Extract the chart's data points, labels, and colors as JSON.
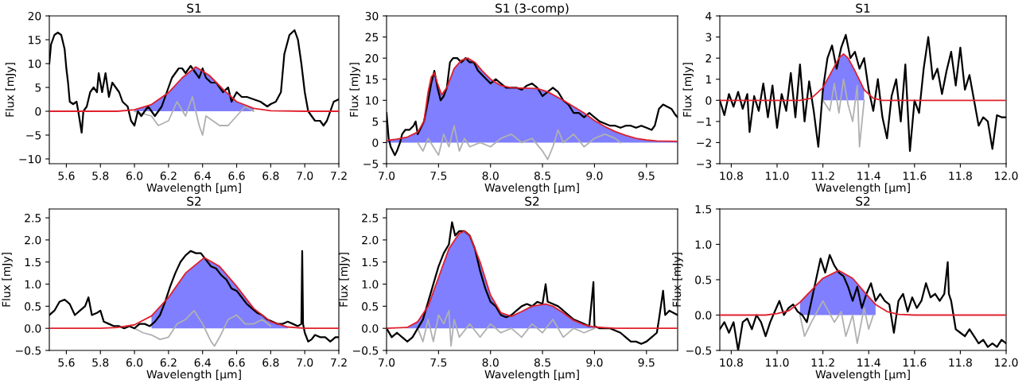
{
  "chart_data": [
    {
      "type": "line",
      "title": "S1",
      "xlabel": "Wavelength [μm]",
      "ylabel": "Flux [mJy]",
      "xlim": [
        5.5,
        7.2
      ],
      "ylim": [
        -11,
        20
      ],
      "xticks": [
        5.6,
        5.8,
        {
          "value": 6,
          "label": "6.0"
        },
        6.2,
        6.4,
        6.6,
        6.8,
        {
          "value": 7,
          "label": "7.0"
        },
        7.2
      ],
      "yticks": [
        -10,
        -5,
        0,
        5,
        10,
        15,
        20
      ],
      "series": [
        {
          "type": "area",
          "color": "#7f7fff",
          "x": [
            6.0,
            6.1,
            6.2,
            6.28,
            6.36,
            6.44,
            6.52,
            6.6,
            6.7
          ],
          "values": [
            0.3,
            1.4,
            3.9,
            7.0,
            9.3,
            7.5,
            4.6,
            2.0,
            0.6
          ]
        },
        {
          "type": "line",
          "color": "#b0b0b0",
          "x": [
            6.0,
            6.1,
            6.14,
            6.2,
            6.25,
            6.3,
            6.34,
            6.38,
            6.4,
            6.42,
            6.46,
            6.5,
            6.55,
            6.6,
            6.65,
            6.7
          ],
          "values": [
            0,
            -1,
            -3,
            -2,
            2,
            -1,
            3,
            -3,
            -5,
            -1,
            -2,
            -3,
            -3,
            -1,
            1,
            0
          ]
        },
        {
          "type": "line",
          "color": "#000000",
          "x": [
            5.5,
            5.51,
            5.53,
            5.55,
            5.57,
            5.59,
            5.6,
            5.61,
            5.62,
            5.64,
            5.66,
            5.67,
            5.69,
            5.7,
            5.72,
            5.74,
            5.76,
            5.78,
            5.79,
            5.81,
            5.83,
            5.85,
            5.87,
            5.89,
            5.91,
            5.93,
            5.96,
            5.98,
            6.0,
            6.02,
            6.04,
            6.06,
            6.08,
            6.1,
            6.12,
            6.14,
            6.16,
            6.18,
            6.2,
            6.22,
            6.24,
            6.26,
            6.28,
            6.3,
            6.33,
            6.36,
            6.38,
            6.4,
            6.42,
            6.45,
            6.48,
            6.5,
            6.52,
            6.55,
            6.57,
            6.6,
            6.63,
            6.66,
            6.7,
            6.74,
            6.78,
            6.8,
            6.83,
            6.86,
            6.88,
            6.91,
            6.94,
            6.96,
            6.98,
            7.0,
            7.02,
            7.04,
            7.06,
            7.09,
            7.11,
            7.13,
            7.15,
            7.17,
            7.2
          ],
          "values": [
            10,
            14,
            16,
            16.5,
            16,
            13,
            9,
            6,
            2,
            1.5,
            2,
            0,
            -4.5,
            0,
            1,
            4,
            5,
            4,
            8,
            4,
            8,
            3,
            6,
            5,
            4,
            2,
            1,
            -2,
            -3,
            0,
            -1,
            0,
            1,
            0,
            -1,
            0,
            1,
            3,
            5,
            7,
            8,
            9,
            9,
            8,
            9.5,
            8,
            7,
            9,
            7,
            6,
            6,
            5,
            4,
            5,
            2,
            4,
            3,
            3,
            2.5,
            2,
            1,
            1.5,
            2,
            4,
            12,
            16,
            17,
            15,
            10,
            4,
            0,
            -1,
            -2,
            -2,
            -3,
            -2,
            0,
            2,
            2.5
          ]
        },
        {
          "type": "line",
          "color": "#e0202c",
          "x": [
            5.5,
            5.9,
            6.0,
            6.1,
            6.2,
            6.28,
            6.36,
            6.44,
            6.52,
            6.6,
            6.7,
            6.8,
            7.0,
            7.2
          ],
          "values": [
            0,
            0,
            0.3,
            1.4,
            3.9,
            7.0,
            9.3,
            7.5,
            4.6,
            2.0,
            0.6,
            0.1,
            0,
            0
          ]
        }
      ]
    },
    {
      "type": "line",
      "title": "S1 (3-comp)",
      "xlabel": "Wavelength [μm]",
      "ylabel": "Flux [mJy]",
      "xlim": [
        7.0,
        9.8
      ],
      "ylim": [
        -5,
        30
      ],
      "xticks": [
        {
          "value": 7,
          "label": "7.0"
        },
        7.5,
        {
          "value": 8,
          "label": "8.0"
        },
        8.5,
        {
          "value": 9,
          "label": "9.0"
        },
        9.5
      ],
      "yticks": [
        -5,
        0,
        5,
        10,
        15,
        20,
        25,
        30
      ],
      "series": [
        {
          "type": "area",
          "color": "#7f7fff",
          "x": [
            7.0,
            7.1,
            7.2,
            7.3,
            7.36,
            7.4,
            7.43,
            7.46,
            7.49,
            7.53,
            7.58,
            7.65,
            7.72,
            7.78,
            7.85,
            7.92,
            8.0,
            8.1,
            8.2,
            8.3,
            8.45,
            8.55,
            8.7,
            8.8,
            8.9,
            9.0,
            9.1,
            9.2,
            9.3,
            9.4,
            9.5,
            9.6,
            9.8
          ],
          "values": [
            0.5,
            0.8,
            1.3,
            2.5,
            5,
            12,
            15.5,
            16.5,
            14,
            11.3,
            13,
            17.5,
            19.5,
            20,
            19,
            17,
            15,
            13.5,
            13,
            12.9,
            12.8,
            12,
            10,
            8.5,
            7,
            5.2,
            3.8,
            2.6,
            1.7,
            1.0,
            0.6,
            0.4,
            0.3
          ]
        },
        {
          "type": "line",
          "color": "#b0b0b0",
          "x": [
            7.3,
            7.35,
            7.4,
            7.45,
            7.5,
            7.55,
            7.6,
            7.65,
            7.7,
            7.75,
            7.8,
            7.9,
            8.0,
            8.1,
            8.2,
            8.3,
            8.4,
            8.5,
            8.55,
            8.6,
            8.65,
            8.7,
            8.8,
            8.9,
            9.0,
            9.1,
            9.2,
            9.25
          ],
          "values": [
            0,
            -2,
            1,
            -1,
            -3,
            2,
            -1,
            4,
            -2,
            1,
            -1,
            0,
            -1,
            1,
            2,
            0,
            1,
            -2,
            -4,
            -1,
            3,
            0,
            2,
            -1,
            1,
            2,
            1,
            0
          ]
        },
        {
          "type": "line",
          "color": "#000000",
          "x": [
            7.0,
            7.02,
            7.04,
            7.06,
            7.08,
            7.1,
            7.13,
            7.15,
            7.18,
            7.22,
            7.26,
            7.28,
            7.3,
            7.32,
            7.36,
            7.4,
            7.43,
            7.46,
            7.49,
            7.52,
            7.55,
            7.58,
            7.61,
            7.64,
            7.68,
            7.72,
            7.76,
            7.8,
            7.84,
            7.88,
            7.92,
            7.96,
            8.0,
            8.05,
            8.1,
            8.15,
            8.2,
            8.25,
            8.3,
            8.35,
            8.4,
            8.45,
            8.5,
            8.55,
            8.6,
            8.65,
            8.7,
            8.75,
            8.8,
            8.85,
            8.9,
            8.95,
            9.0,
            9.05,
            9.1,
            9.15,
            9.2,
            9.25,
            9.3,
            9.35,
            9.4,
            9.45,
            9.5,
            9.55,
            9.58,
            9.62,
            9.66,
            9.7,
            9.74,
            9.78,
            9.8
          ],
          "values": [
            7,
            1,
            -1,
            -2,
            -3,
            -2,
            0,
            2,
            3,
            3,
            4,
            5,
            2,
            3,
            5,
            10,
            14,
            17,
            13,
            10,
            11,
            13,
            19,
            20,
            20,
            19,
            20,
            19,
            19,
            17,
            16,
            15,
            14,
            15,
            14,
            13,
            13,
            13,
            12.5,
            13.5,
            14,
            13,
            11,
            12,
            13,
            12,
            10,
            9,
            7,
            7,
            6,
            7,
            6,
            5,
            4.5,
            4,
            4,
            3.5,
            4,
            4,
            3.5,
            4,
            3.5,
            3,
            4,
            8,
            9,
            8.5,
            8,
            6.5,
            6
          ]
        },
        {
          "type": "line",
          "color": "#e0202c",
          "x": [
            7.0,
            7.1,
            7.2,
            7.3,
            7.36,
            7.4,
            7.43,
            7.46,
            7.49,
            7.53,
            7.58,
            7.65,
            7.72,
            7.78,
            7.85,
            7.92,
            8.0,
            8.1,
            8.2,
            8.3,
            8.45,
            8.55,
            8.7,
            8.8,
            8.9,
            9.0,
            9.1,
            9.2,
            9.3,
            9.4,
            9.5,
            9.6,
            9.8
          ],
          "values": [
            0.5,
            0.8,
            1.3,
            2.5,
            5,
            12,
            15.5,
            16.5,
            14,
            11.3,
            13,
            17.5,
            19.5,
            20,
            19,
            17,
            15,
            13.5,
            13,
            12.9,
            12.8,
            12,
            10,
            8.5,
            7,
            5.2,
            3.8,
            2.6,
            1.7,
            1.0,
            0.6,
            0.4,
            0.3
          ]
        }
      ]
    },
    {
      "type": "line",
      "title": "S1",
      "xlabel": "Wavelength [μm]",
      "ylabel": "Flux [mJy]",
      "xlim": [
        10.75,
        12.0
      ],
      "ylim": [
        -3,
        4
      ],
      "xticks": [
        10.8,
        {
          "value": 11,
          "label": "11.0"
        },
        11.2,
        11.4,
        11.6,
        11.8,
        {
          "value": 12,
          "label": "12.0"
        }
      ],
      "yticks": [
        -3,
        -2,
        -1,
        0,
        1,
        2,
        3,
        4
      ],
      "series": [
        {
          "type": "area",
          "color": "#7f7fff",
          "x": [
            11.2,
            11.24,
            11.27,
            11.29,
            11.31,
            11.34,
            11.38
          ],
          "values": [
            0.6,
            1.4,
            2.0,
            2.2,
            2.0,
            1.4,
            0.5
          ]
        },
        {
          "type": "line",
          "color": "#b0b0b0",
          "x": [
            11.2,
            11.23,
            11.25,
            11.27,
            11.29,
            11.31,
            11.33,
            11.35,
            11.36,
            11.38
          ],
          "values": [
            0,
            -0.5,
            0.8,
            -0.6,
            1.0,
            -0.2,
            -1.0,
            0.7,
            -2.2,
            0
          ]
        },
        {
          "type": "line",
          "color": "#000000",
          "x": [
            10.75,
            10.77,
            10.79,
            10.81,
            10.83,
            10.85,
            10.87,
            10.88,
            10.9,
            10.92,
            10.94,
            10.96,
            10.98,
            11.0,
            11.02,
            11.04,
            11.06,
            11.08,
            11.1,
            11.12,
            11.14,
            11.16,
            11.18,
            11.2,
            11.22,
            11.24,
            11.26,
            11.28,
            11.3,
            11.32,
            11.34,
            11.36,
            11.38,
            11.4,
            11.42,
            11.44,
            11.46,
            11.48,
            11.5,
            11.52,
            11.54,
            11.56,
            11.58,
            11.6,
            11.62,
            11.64,
            11.66,
            11.68,
            11.7,
            11.72,
            11.74,
            11.76,
            11.78,
            11.8,
            11.82,
            11.84,
            11.86,
            11.88,
            11.9,
            11.92,
            11.94,
            11.96,
            11.98,
            12.0
          ],
          "values": [
            0,
            -0.7,
            0.3,
            -0.3,
            0.4,
            -0.4,
            0.3,
            -1.5,
            0.2,
            -0.5,
            0.8,
            -0.8,
            0.7,
            -1.3,
            0.3,
            -0.5,
            1.3,
            -0.8,
            1.7,
            -1.0,
            0.9,
            -0.5,
            -2.2,
            0.5,
            2.0,
            2.6,
            1.5,
            2.5,
            3.1,
            2.0,
            2.3,
            1.5,
            2.0,
            0.5,
            -0.5,
            1.0,
            -0.8,
            -1.8,
            0.2,
            1.0,
            -1.0,
            1.7,
            -2.4,
            0.0,
            -0.6,
            1.5,
            3.0,
            1.0,
            1.5,
            0.3,
            1.4,
            2.3,
            0.7,
            2.5,
            0.5,
            1.2,
            0.0,
            -1.2,
            -0.8,
            -1.0,
            -2.3,
            -0.7,
            -0.8,
            -0.8
          ]
        },
        {
          "type": "line",
          "color": "#e0202c",
          "x": [
            10.75,
            11.1,
            11.15,
            11.2,
            11.24,
            11.27,
            11.29,
            11.31,
            11.34,
            11.38,
            11.42,
            11.46,
            12.0
          ],
          "values": [
            0,
            0,
            0.1,
            0.6,
            1.4,
            2.0,
            2.2,
            2.0,
            1.4,
            0.5,
            0.1,
            0,
            0
          ]
        }
      ]
    },
    {
      "type": "line",
      "title": "S2",
      "xlabel": "Wavelength [μm]",
      "ylabel": "Flux [mJy]",
      "xlim": [
        5.5,
        7.2
      ],
      "ylim": [
        -0.5,
        2.7
      ],
      "xticks": [
        5.6,
        5.8,
        {
          "value": 6,
          "label": "6.0"
        },
        6.2,
        6.4,
        6.6,
        6.8,
        {
          "value": 7,
          "label": "7.0"
        },
        7.2
      ],
      "yticks": [
        {
          "value": -0.5,
          "label": "−0.5"
        },
        {
          "value": 0,
          "label": "0.0"
        },
        0.5,
        {
          "value": 1,
          "label": "1.0"
        },
        1.5,
        {
          "value": 2,
          "label": "2.0"
        },
        2.5
      ],
      "series": [
        {
          "type": "area",
          "color": "#7f7fff",
          "x": [
            6.1,
            6.2,
            6.3,
            6.41,
            6.5,
            6.6,
            6.7,
            6.8,
            6.9
          ],
          "values": [
            0.28,
            0.7,
            1.25,
            1.6,
            1.4,
            0.95,
            0.45,
            0.15,
            0.03
          ]
        },
        {
          "type": "line",
          "color": "#b0b0b0",
          "x": [
            6.0,
            6.05,
            6.1,
            6.15,
            6.2,
            6.25,
            6.3,
            6.35,
            6.4,
            6.45,
            6.47,
            6.5,
            6.55,
            6.6,
            6.65,
            6.7,
            6.75,
            6.8
          ],
          "values": [
            0,
            -0.1,
            -0.15,
            -0.25,
            -0.2,
            0.1,
            0.2,
            0.4,
            0.1,
            -0.3,
            -0.4,
            -0.2,
            0.2,
            0.3,
            0.1,
            0.1,
            0.2,
            0.05
          ]
        },
        {
          "type": "line",
          "color": "#000000",
          "x": [
            5.5,
            5.53,
            5.56,
            5.59,
            5.62,
            5.65,
            5.68,
            5.71,
            5.73,
            5.75,
            5.78,
            5.8,
            5.82,
            5.85,
            5.88,
            5.91,
            5.94,
            5.97,
            6.0,
            6.03,
            6.06,
            6.09,
            6.12,
            6.15,
            6.18,
            6.21,
            6.24,
            6.27,
            6.3,
            6.33,
            6.36,
            6.39,
            6.42,
            6.45,
            6.48,
            6.51,
            6.54,
            6.57,
            6.6,
            6.63,
            6.66,
            6.69,
            6.72,
            6.75,
            6.78,
            6.81,
            6.84,
            6.87,
            6.9,
            6.93,
            6.96,
            6.98,
            6.985,
            6.99,
            7.0,
            7.02,
            7.04,
            7.06,
            7.09,
            7.12,
            7.15,
            7.18,
            7.2
          ],
          "values": [
            0.3,
            0.4,
            0.6,
            0.65,
            0.55,
            0.3,
            0.4,
            0.5,
            0.7,
            0.3,
            0.35,
            0.4,
            0.15,
            0.1,
            0.05,
            0.05,
            0.0,
            0.05,
            0.0,
            0.1,
            0.1,
            0.05,
            0.15,
            0.3,
            0.6,
            0.95,
            1.25,
            1.5,
            1.65,
            1.75,
            1.7,
            1.7,
            1.55,
            1.4,
            1.35,
            1.2,
            1.1,
            0.9,
            0.85,
            0.7,
            0.55,
            0.45,
            0.35,
            0.3,
            0.2,
            0.15,
            0.1,
            0.1,
            0.15,
            0.1,
            0.05,
            0.1,
            1.75,
            0.1,
            -0.1,
            -0.3,
            -0.25,
            -0.15,
            -0.2,
            -0.2,
            -0.3,
            -0.2,
            -0.2
          ]
        },
        {
          "type": "line",
          "color": "#e0202c",
          "x": [
            5.5,
            5.8,
            5.9,
            6.0,
            6.1,
            6.2,
            6.3,
            6.41,
            6.5,
            6.6,
            6.7,
            6.8,
            6.9,
            7.0,
            7.2
          ],
          "values": [
            0,
            0,
            0.02,
            0.08,
            0.28,
            0.7,
            1.25,
            1.6,
            1.4,
            0.95,
            0.45,
            0.15,
            0.03,
            0,
            0
          ]
        }
      ]
    },
    {
      "type": "line",
      "title": "S2",
      "xlabel": "Wavelength [μm]",
      "ylabel": "Flux [mJy]",
      "xlim": [
        7.0,
        9.8
      ],
      "ylim": [
        -0.5,
        2.7
      ],
      "xticks": [
        {
          "value": 7,
          "label": "7.0"
        },
        7.5,
        {
          "value": 8,
          "label": "8.0"
        },
        8.5,
        {
          "value": 9,
          "label": "9.0"
        },
        9.5
      ],
      "yticks": [
        {
          "value": -0.5,
          "label": "−0.5"
        },
        {
          "value": 0,
          "label": "0.0"
        },
        0.5,
        {
          "value": 1,
          "label": "1.0"
        },
        1.5,
        {
          "value": 2,
          "label": "2.0"
        },
        2.5
      ],
      "series": [
        {
          "type": "area",
          "color": "#7f7fff",
          "x": [
            7.2,
            7.3,
            7.4,
            7.5,
            7.6,
            7.7,
            7.75,
            7.8,
            7.9,
            8.0,
            8.1,
            8.2,
            8.3,
            8.4,
            8.53,
            8.6,
            8.7,
            8.8,
            8.9,
            9.0
          ],
          "values": [
            0.02,
            0.15,
            0.5,
            1.15,
            1.8,
            2.15,
            2.2,
            2.1,
            1.5,
            0.75,
            0.35,
            0.27,
            0.38,
            0.5,
            0.55,
            0.5,
            0.35,
            0.18,
            0.08,
            0.03
          ]
        },
        {
          "type": "line",
          "color": "#b0b0b0",
          "x": [
            7.3,
            7.35,
            7.4,
            7.45,
            7.5,
            7.55,
            7.6,
            7.62,
            7.65,
            7.7,
            7.8,
            7.9,
            8.0,
            8.1,
            8.2,
            8.3,
            8.4,
            8.5,
            8.6,
            8.7,
            8.8,
            8.9,
            9.0
          ],
          "values": [
            0,
            -0.3,
            0.2,
            -0.3,
            0.3,
            0.1,
            0.4,
            -0.4,
            0.2,
            -0.2,
            0.1,
            -0.2,
            0.1,
            -0.1,
            0.0,
            -0.2,
            0.1,
            -0.1,
            0.2,
            -0.2,
            0.0,
            -0.1,
            0
          ]
        },
        {
          "type": "line",
          "color": "#000000",
          "x": [
            7.0,
            7.05,
            7.1,
            7.15,
            7.2,
            7.25,
            7.3,
            7.35,
            7.4,
            7.45,
            7.5,
            7.55,
            7.6,
            7.63,
            7.66,
            7.7,
            7.75,
            7.8,
            7.85,
            7.9,
            7.95,
            8.0,
            8.05,
            8.1,
            8.15,
            8.2,
            8.25,
            8.3,
            8.35,
            8.4,
            8.45,
            8.5,
            8.53,
            8.55,
            8.6,
            8.65,
            8.7,
            8.75,
            8.8,
            8.85,
            8.9,
            8.95,
            8.99,
            9.0,
            9.05,
            9.1,
            9.15,
            9.2,
            9.25,
            9.3,
            9.35,
            9.4,
            9.45,
            9.5,
            9.55,
            9.6,
            9.62,
            9.66,
            9.68,
            9.72,
            9.76,
            9.8
          ],
          "values": [
            0.0,
            -0.2,
            -0.1,
            -0.2,
            -0.3,
            -0.2,
            0.0,
            0.2,
            0.6,
            1.0,
            1.4,
            1.7,
            1.9,
            2.4,
            2.1,
            2.2,
            2.2,
            2.1,
            1.8,
            1.3,
            0.9,
            0.6,
            0.5,
            0.3,
            0.25,
            0.3,
            0.4,
            0.5,
            0.55,
            0.5,
            0.6,
            0.55,
            1.0,
            0.6,
            0.55,
            0.5,
            0.4,
            0.3,
            0.2,
            0.15,
            0.1,
            0.05,
            1.05,
            0.05,
            0.0,
            0.0,
            0.0,
            -0.05,
            -0.1,
            -0.2,
            -0.3,
            -0.3,
            -0.35,
            -0.3,
            -0.2,
            -0.1,
            0.2,
            0.85,
            0.3,
            0.4,
            0.35,
            0.3
          ]
        },
        {
          "type": "line",
          "color": "#e0202c",
          "x": [
            7.0,
            7.2,
            7.3,
            7.4,
            7.5,
            7.6,
            7.7,
            7.75,
            7.8,
            7.9,
            8.0,
            8.1,
            8.2,
            8.3,
            8.4,
            8.53,
            8.6,
            8.7,
            8.8,
            8.9,
            9.0,
            9.2,
            9.8
          ],
          "values": [
            0.0,
            0.02,
            0.15,
            0.5,
            1.15,
            1.8,
            2.15,
            2.2,
            2.1,
            1.5,
            0.75,
            0.35,
            0.27,
            0.38,
            0.5,
            0.55,
            0.5,
            0.35,
            0.18,
            0.08,
            0.03,
            0.0,
            0.0
          ]
        }
      ]
    },
    {
      "type": "line",
      "title": "S2",
      "xlabel": "Wavelength [μm]",
      "ylabel": "Flux [mJy]",
      "xlim": [
        10.75,
        12.0
      ],
      "ylim": [
        -0.5,
        1.5
      ],
      "xticks": [
        10.8,
        {
          "value": 11,
          "label": "11.0"
        },
        11.2,
        11.4,
        11.6,
        11.8,
        {
          "value": 12,
          "label": "12.0"
        }
      ],
      "yticks": [
        {
          "value": -0.5,
          "label": "−0.5"
        },
        {
          "value": 0,
          "label": "0.0"
        },
        0.5,
        {
          "value": 1,
          "label": "1.0"
        },
        1.5
      ],
      "series": [
        {
          "type": "area",
          "color": "#7f7fff",
          "x": [
            11.1,
            11.15,
            11.2,
            11.27,
            11.33,
            11.38,
            11.43
          ],
          "values": [
            0.18,
            0.35,
            0.52,
            0.63,
            0.52,
            0.33,
            0.15
          ]
        },
        {
          "type": "line",
          "color": "#b0b0b0",
          "x": [
            11.1,
            11.12,
            11.15,
            11.2,
            11.25,
            11.28,
            11.3,
            11.33,
            11.35,
            11.38,
            11.4,
            11.42
          ],
          "values": [
            0,
            -0.3,
            -0.1,
            0.2,
            -0.1,
            0.05,
            -0.3,
            0.0,
            -0.4,
            0.1,
            -0.2,
            0.0
          ]
        },
        {
          "type": "line",
          "color": "#000000",
          "x": [
            10.75,
            10.77,
            10.79,
            10.81,
            10.83,
            10.85,
            10.87,
            10.89,
            10.91,
            10.93,
            10.95,
            10.97,
            10.99,
            11.01,
            11.03,
            11.05,
            11.07,
            11.09,
            11.11,
            11.13,
            11.15,
            11.17,
            11.19,
            11.21,
            11.23,
            11.25,
            11.27,
            11.29,
            11.31,
            11.33,
            11.35,
            11.37,
            11.39,
            11.41,
            11.43,
            11.45,
            11.47,
            11.49,
            11.51,
            11.53,
            11.55,
            11.57,
            11.59,
            11.61,
            11.63,
            11.65,
            11.67,
            11.69,
            11.71,
            11.73,
            11.745,
            11.75,
            11.76,
            11.78,
            11.8,
            11.82,
            11.84,
            11.86,
            11.88,
            11.9,
            11.92,
            11.94,
            11.96,
            11.98,
            12.0
          ],
          "values": [
            -0.2,
            -0.1,
            -0.25,
            -0.1,
            -0.5,
            -0.1,
            -0.05,
            -0.2,
            0.0,
            -0.1,
            -0.3,
            -0.1,
            0.05,
            0.2,
            0.0,
            0.1,
            0.15,
            0.05,
            0.0,
            -0.1,
            0.2,
            0.5,
            0.8,
            0.6,
            0.85,
            0.7,
            0.6,
            0.55,
            0.4,
            0.2,
            0.4,
            0.1,
            0.3,
            0.45,
            0.2,
            0.3,
            0.2,
            0.15,
            -0.25,
            0.2,
            0.3,
            0.05,
            0.25,
            0.1,
            0.2,
            0.45,
            0.25,
            0.3,
            0.2,
            0.3,
            0.75,
            0.3,
            0.2,
            -0.2,
            -0.25,
            -0.3,
            -0.2,
            -0.3,
            -0.4,
            -0.35,
            -0.45,
            -0.4,
            -0.45,
            -0.35,
            -0.4
          ]
        },
        {
          "type": "line",
          "color": "#e0202c",
          "x": [
            10.75,
            10.95,
            11.0,
            11.05,
            11.1,
            11.15,
            11.2,
            11.27,
            11.33,
            11.38,
            11.43,
            11.48,
            11.53,
            11.6,
            12.0
          ],
          "values": [
            0,
            0,
            0.02,
            0.06,
            0.18,
            0.35,
            0.52,
            0.63,
            0.52,
            0.33,
            0.15,
            0.05,
            0.01,
            0,
            0
          ]
        }
      ]
    }
  ]
}
